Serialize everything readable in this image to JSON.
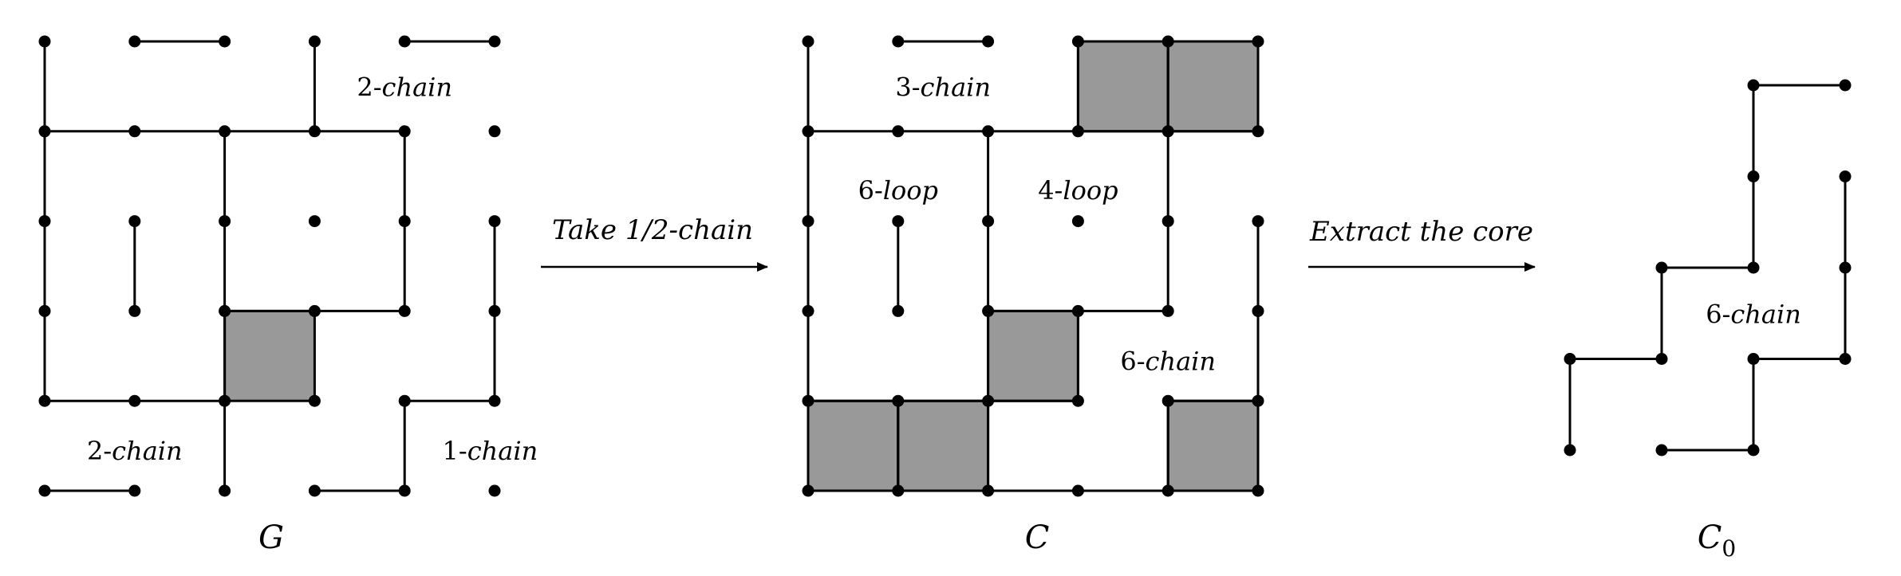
{
  "colors": {
    "stroke": "#000000",
    "fill": "#999999",
    "background": "#ffffff"
  },
  "panels": [
    {
      "id": "G",
      "title": "G",
      "grid": {
        "cols": 6,
        "rows": 6
      },
      "dots": [
        [
          0,
          0
        ],
        [
          1,
          0
        ],
        [
          2,
          0
        ],
        [
          3,
          0
        ],
        [
          4,
          0
        ],
        [
          5,
          0
        ],
        [
          0,
          1
        ],
        [
          1,
          1
        ],
        [
          2,
          1
        ],
        [
          3,
          1
        ],
        [
          4,
          1
        ],
        [
          5,
          1
        ],
        [
          0,
          2
        ],
        [
          1,
          2
        ],
        [
          2,
          2
        ],
        [
          3,
          2
        ],
        [
          4,
          2
        ],
        [
          5,
          2
        ],
        [
          0,
          3
        ],
        [
          1,
          3
        ],
        [
          2,
          3
        ],
        [
          3,
          3
        ],
        [
          4,
          3
        ],
        [
          5,
          3
        ],
        [
          0,
          4
        ],
        [
          1,
          4
        ],
        [
          2,
          4
        ],
        [
          3,
          4
        ],
        [
          4,
          4
        ],
        [
          5,
          4
        ],
        [
          0,
          5
        ],
        [
          1,
          5
        ],
        [
          2,
          5
        ],
        [
          3,
          5
        ],
        [
          4,
          5
        ],
        [
          5,
          5
        ]
      ],
      "edges": [
        [
          [
            0,
            0
          ],
          [
            0,
            4
          ]
        ],
        [
          [
            1,
            0
          ],
          [
            2,
            0
          ]
        ],
        [
          [
            3,
            0
          ],
          [
            3,
            1
          ]
        ],
        [
          [
            4,
            0
          ],
          [
            5,
            0
          ]
        ],
        [
          [
            0,
            1
          ],
          [
            4,
            1
          ]
        ],
        [
          [
            2,
            1
          ],
          [
            2,
            5
          ]
        ],
        [
          [
            4,
            1
          ],
          [
            4,
            3
          ]
        ],
        [
          [
            1,
            2
          ],
          [
            1,
            3
          ]
        ],
        [
          [
            5,
            2
          ],
          [
            5,
            4
          ]
        ],
        [
          [
            2,
            3
          ],
          [
            4,
            3
          ]
        ],
        [
          [
            0,
            4
          ],
          [
            2,
            4
          ]
        ],
        [
          [
            4,
            4
          ],
          [
            5,
            4
          ]
        ],
        [
          [
            4,
            4
          ],
          [
            4,
            5
          ]
        ],
        [
          [
            3,
            5
          ],
          [
            4,
            5
          ]
        ],
        [
          [
            0,
            5
          ],
          [
            1,
            5
          ]
        ]
      ],
      "squares": [
        [
          2,
          3
        ]
      ],
      "labels": [
        {
          "num": "2-",
          "word": "chain",
          "gx": 4.0,
          "gy": 0.5
        },
        {
          "num": "2-",
          "word": "chain",
          "gx": 1.0,
          "gy": 4.55
        },
        {
          "num": "1-",
          "word": "chain",
          "gx": 4.95,
          "gy": 4.55
        }
      ]
    },
    {
      "id": "C",
      "title": "C",
      "grid": {
        "cols": 6,
        "rows": 6
      },
      "dots": [
        [
          0,
          0
        ],
        [
          1,
          0
        ],
        [
          2,
          0
        ],
        [
          3,
          0
        ],
        [
          4,
          0
        ],
        [
          5,
          0
        ],
        [
          0,
          1
        ],
        [
          1,
          1
        ],
        [
          2,
          1
        ],
        [
          3,
          1
        ],
        [
          4,
          1
        ],
        [
          5,
          1
        ],
        [
          0,
          2
        ],
        [
          1,
          2
        ],
        [
          2,
          2
        ],
        [
          3,
          2
        ],
        [
          4,
          2
        ],
        [
          5,
          2
        ],
        [
          0,
          3
        ],
        [
          1,
          3
        ],
        [
          2,
          3
        ],
        [
          3,
          3
        ],
        [
          4,
          3
        ],
        [
          5,
          3
        ],
        [
          0,
          4
        ],
        [
          1,
          4
        ],
        [
          2,
          4
        ],
        [
          3,
          4
        ],
        [
          4,
          4
        ],
        [
          5,
          4
        ],
        [
          0,
          5
        ],
        [
          1,
          5
        ],
        [
          2,
          5
        ],
        [
          3,
          5
        ],
        [
          4,
          5
        ],
        [
          5,
          5
        ]
      ],
      "edges": [
        [
          [
            0,
            0
          ],
          [
            0,
            5
          ]
        ],
        [
          [
            1,
            0
          ],
          [
            2,
            0
          ]
        ],
        [
          [
            3,
            0
          ],
          [
            5,
            0
          ]
        ],
        [
          [
            0,
            1
          ],
          [
            5,
            1
          ]
        ],
        [
          [
            3,
            0
          ],
          [
            3,
            1
          ]
        ],
        [
          [
            4,
            0
          ],
          [
            4,
            3
          ]
        ],
        [
          [
            5,
            0
          ],
          [
            5,
            1
          ]
        ],
        [
          [
            2,
            1
          ],
          [
            2,
            5
          ]
        ],
        [
          [
            1,
            2
          ],
          [
            1,
            3
          ]
        ],
        [
          [
            5,
            2
          ],
          [
            5,
            5
          ]
        ],
        [
          [
            2,
            3
          ],
          [
            4,
            3
          ]
        ],
        [
          [
            3,
            3
          ],
          [
            3,
            4
          ]
        ],
        [
          [
            0,
            4
          ],
          [
            3,
            4
          ]
        ],
        [
          [
            4,
            4
          ],
          [
            5,
            4
          ]
        ],
        [
          [
            4,
            4
          ],
          [
            4,
            5
          ]
        ],
        [
          [
            0,
            5
          ],
          [
            5,
            5
          ]
        ],
        [
          [
            1,
            4
          ],
          [
            1,
            5
          ]
        ]
      ],
      "squares": [
        [
          3,
          0
        ],
        [
          4,
          0
        ],
        [
          2,
          3
        ],
        [
          0,
          4
        ],
        [
          1,
          4
        ],
        [
          4,
          4
        ]
      ],
      "labels": [
        {
          "num": "3-",
          "word": "chain",
          "gx": 1.5,
          "gy": 0.5
        },
        {
          "num": "6-",
          "word": "loop",
          "gx": 1.0,
          "gy": 1.65
        },
        {
          "num": "4-",
          "word": "loop",
          "gx": 3.0,
          "gy": 1.65
        },
        {
          "num": "6-",
          "word": "chain",
          "gx": 4.0,
          "gy": 3.55
        }
      ]
    },
    {
      "id": "C0",
      "title": "C",
      "subscript": "0",
      "grid": {
        "cols": 4,
        "rows": 5
      },
      "dots": [
        [
          2,
          0
        ],
        [
          3,
          0
        ],
        [
          2,
          1
        ],
        [
          3,
          1
        ],
        [
          1,
          2
        ],
        [
          2,
          2
        ],
        [
          3,
          2
        ],
        [
          0,
          3
        ],
        [
          1,
          3
        ],
        [
          2,
          3
        ],
        [
          3,
          3
        ],
        [
          0,
          4
        ],
        [
          1,
          4
        ],
        [
          2,
          4
        ]
      ],
      "edges": [
        [
          [
            2,
            0
          ],
          [
            3,
            0
          ]
        ],
        [
          [
            2,
            0
          ],
          [
            2,
            2
          ]
        ],
        [
          [
            1,
            2
          ],
          [
            2,
            2
          ]
        ],
        [
          [
            1,
            2
          ],
          [
            1,
            3
          ]
        ],
        [
          [
            0,
            3
          ],
          [
            1,
            3
          ]
        ],
        [
          [
            0,
            3
          ],
          [
            0,
            4
          ]
        ],
        [
          [
            3,
            1
          ],
          [
            3,
            3
          ]
        ],
        [
          [
            2,
            3
          ],
          [
            3,
            3
          ]
        ],
        [
          [
            2,
            3
          ],
          [
            2,
            4
          ]
        ],
        [
          [
            1,
            4
          ],
          [
            2,
            4
          ]
        ]
      ],
      "squares": [],
      "labels": [
        {
          "num": "6-",
          "word": "chain",
          "gx": 2.0,
          "gy": 2.5
        }
      ]
    }
  ],
  "arrows": [
    {
      "id": "arrow-1",
      "label": "Take 1/2-chain"
    },
    {
      "id": "arrow-2",
      "label": "Extract the core"
    }
  ]
}
